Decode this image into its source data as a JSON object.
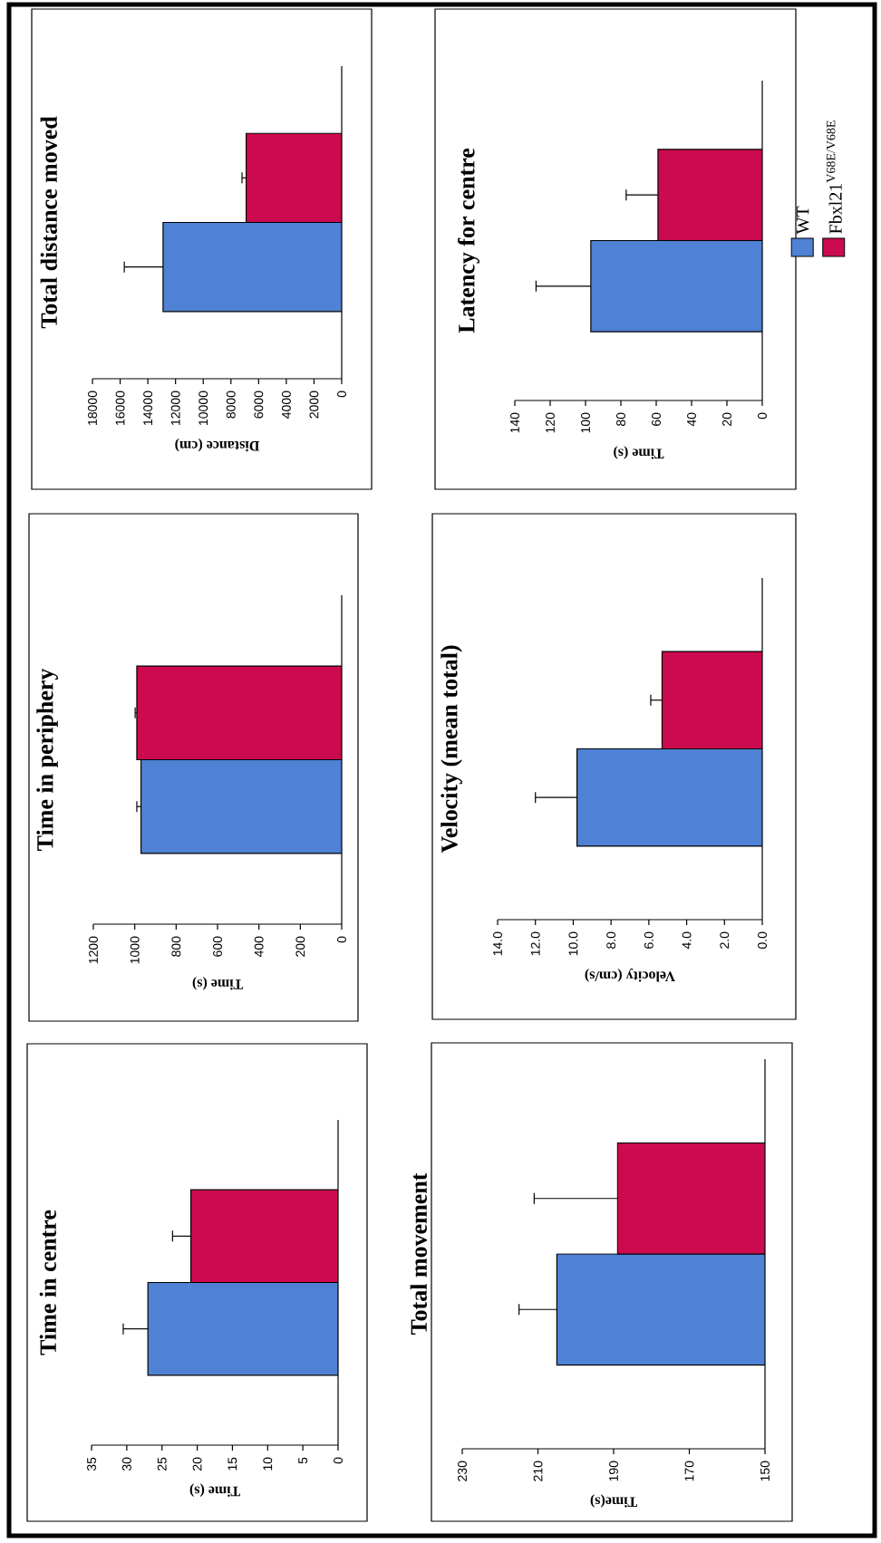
{
  "chart_data": [
    {
      "type": "bar",
      "orientation": "horizontal",
      "title": "Time in centre",
      "xlabel": "Time (s)",
      "categories": [
        null
      ],
      "xlim": [
        35,
        0
      ],
      "xticks": [
        {
          "value": 0,
          "label": "0"
        },
        {
          "value": 5,
          "label": "5"
        },
        {
          "value": 10,
          "label": "10"
        },
        {
          "value": 15,
          "label": "15"
        },
        {
          "value": 20,
          "label": "20"
        },
        {
          "value": 25,
          "label": "25"
        },
        {
          "value": 30,
          "label": "30"
        },
        {
          "value": 35,
          "label": "35"
        }
      ],
      "tick_labels": "x",
      "series": [
        {
          "color": "#4f81d4",
          "values": [
            27
          ],
          "errors": [
            [
              27,
              30.5
            ]
          ]
        },
        {
          "color": "#cc0a50",
          "values": [
            20.9
          ],
          "errors": [
            [
              20.9,
              23.5
            ]
          ]
        }
      ]
    },
    {
      "type": "bar",
      "orientation": "horizontal",
      "title": "Time in periphery",
      "xlabel": "Time (s)",
      "categories": [
        null
      ],
      "xlim": [
        1200,
        0
      ],
      "xticks": [
        {
          "value": 0,
          "label": "0"
        },
        {
          "value": 200,
          "label": "200"
        },
        {
          "value": 400,
          "label": "400"
        },
        {
          "value": 600,
          "label": "600"
        },
        {
          "value": 800,
          "label": "800"
        },
        {
          "value": 1000,
          "label": "1000"
        },
        {
          "value": 1200,
          "label": "1200"
        }
      ],
      "tick_labels": "x",
      "series": [
        {
          "color": "#4f81d4",
          "values": [
            970
          ],
          "errors": [
            [
              970,
              990
            ]
          ]
        },
        {
          "color": "#cc0a50",
          "values": [
            990
          ],
          "errors": [
            [
              990,
              998
            ]
          ]
        }
      ]
    },
    {
      "type": "bar",
      "orientation": "horizontal",
      "title": "Total distance moved",
      "xlabel": "Distance (cm)",
      "categories": [
        null
      ],
      "xlim": [
        18000,
        0
      ],
      "xticks": [
        {
          "value": 0,
          "label": "0"
        },
        {
          "value": 2000,
          "label": "2000"
        },
        {
          "value": 4000,
          "label": "4000"
        },
        {
          "value": 6000,
          "label": "6000"
        },
        {
          "value": 8000,
          "label": "8000"
        },
        {
          "value": 10000,
          "label": "10000"
        },
        {
          "value": 12000,
          "label": "12000"
        },
        {
          "value": 14000,
          "label": "14000"
        },
        {
          "value": 16000,
          "label": "16000"
        },
        {
          "value": 18000,
          "label": "18000"
        }
      ],
      "tick_labels": "x",
      "series": [
        {
          "color": "#4f81d4",
          "values": [
            12900
          ],
          "errors": [
            [
              12900,
              15700
            ]
          ]
        },
        {
          "color": "#cc0a50",
          "values": [
            6900
          ],
          "errors": [
            [
              6900,
              7200
            ]
          ]
        }
      ]
    },
    {
      "type": "bar",
      "orientation": "horizontal",
      "title": "Total movement",
      "xlabel": "Time(s)",
      "categories": [
        null
      ],
      "xlim": [
        230,
        150
      ],
      "xticks": [
        {
          "value": 150,
          "label": "150"
        },
        {
          "value": 170,
          "label": "170"
        },
        {
          "value": 190,
          "label": "190"
        },
        {
          "value": 210,
          "label": "210"
        },
        {
          "value": 230,
          "label": "230"
        }
      ],
      "tick_labels": "x",
      "series": [
        {
          "color": "#4f81d4",
          "values": [
            205
          ],
          "errors": [
            [
              205,
              215
            ]
          ]
        },
        {
          "color": "#cc0a50",
          "values": [
            189
          ],
          "errors": [
            [
              189,
              211
            ]
          ]
        }
      ]
    },
    {
      "type": "bar",
      "orientation": "horizontal",
      "title": "Velocity (mean total)",
      "xlabel": "Velocity (cm/s)",
      "categories": [
        null
      ],
      "xlim": [
        14,
        0
      ],
      "xticks": [
        {
          "value": 0,
          "label": "0.0"
        },
        {
          "value": 2,
          "label": "2.0"
        },
        {
          "value": 4,
          "label": "4.0"
        },
        {
          "value": 6,
          "label": "6.0"
        },
        {
          "value": 8,
          "label": "8.0"
        },
        {
          "value": 10,
          "label": "10.0"
        },
        {
          "value": 12,
          "label": "12.0"
        },
        {
          "value": 14,
          "label": "14.0"
        }
      ],
      "tick_labels": "x",
      "series": [
        {
          "color": "#4f81d4",
          "values": [
            9.8
          ],
          "errors": [
            [
              9.8,
              12.0
            ]
          ]
        },
        {
          "color": "#cc0a50",
          "values": [
            5.3
          ],
          "errors": [
            [
              5.3,
              5.9
            ]
          ]
        }
      ]
    },
    {
      "type": "bar",
      "orientation": "horizontal",
      "title": "Latency for centre",
      "xlabel": "Time (s)",
      "categories": [
        null
      ],
      "xlim": [
        140,
        0
      ],
      "xticks": [
        {
          "value": 0,
          "label": "0"
        },
        {
          "value": 20,
          "label": "20"
        },
        {
          "value": 40,
          "label": "40"
        },
        {
          "value": 60,
          "label": "60"
        },
        {
          "value": 80,
          "label": "80"
        },
        {
          "value": 100,
          "label": "100"
        },
        {
          "value": 120,
          "label": "120"
        },
        {
          "value": 140,
          "label": "140"
        }
      ],
      "tick_labels": "x",
      "legend": "right",
      "series": [
        {
          "name": "WT",
          "color": "#4f81d4",
          "values": [
            97
          ],
          "errors": [
            [
              97,
              128
            ]
          ]
        },
        {
          "name": "Fbxl21$^{V68E/V68E}$",
          "color": "#cc0a50",
          "values": [
            59
          ],
          "errors": [
            [
              59,
              77
            ]
          ]
        }
      ]
    }
  ]
}
